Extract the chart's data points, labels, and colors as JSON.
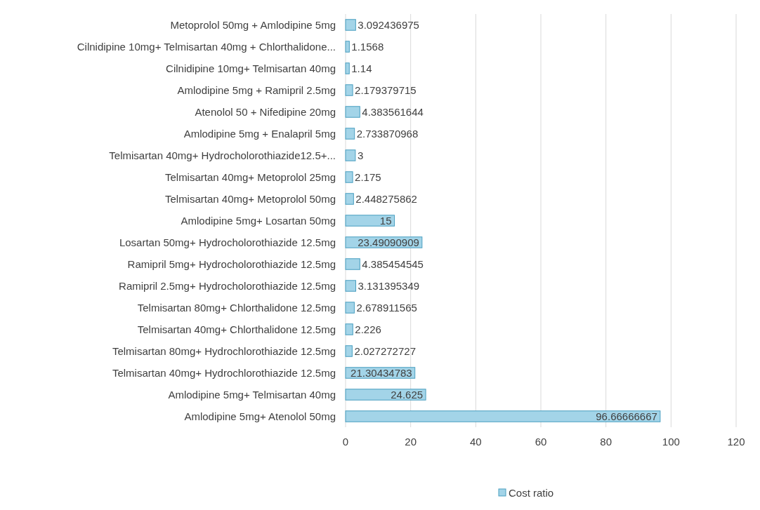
{
  "chart_data": {
    "type": "bar",
    "orientation": "horizontal",
    "categories": [
      "Metoprolol 50mg + Amlodipine 5mg",
      "Cilnidipine 10mg+ Telmisartan 40mg + Chlorthalidone...",
      "Cilnidipine 10mg+ Telmisartan 40mg",
      "Amlodipine 5mg + Ramipril 2.5mg",
      "Atenolol 50 + Nifedipine 20mg",
      "Amlodipine 5mg + Enalapril 5mg",
      "Telmisartan 40mg+ Hydrocholorothiazide12.5+...",
      "Telmisartan 40mg+ Metoprolol 25mg",
      "Telmisartan 40mg+ Metoprolol 50mg",
      "Amlodipine 5mg+ Losartan 50mg",
      "Losartan 50mg+ Hydrocholorothiazide 12.5mg",
      "Ramipril 5mg+ Hydrocholorothiazide 12.5mg",
      "Ramipril 2.5mg+ Hydrocholorothiazide 12.5mg",
      "Telmisartan 80mg+ Chlorthalidone 12.5mg",
      "Telmisartan 40mg+ Chlorthalidone 12.5mg",
      "Telmisartan 80mg+ Hydrochlorothiazide 12.5mg",
      "Telmisartan 40mg+ Hydrochlorothiazide 12.5mg",
      "Amlodipine 5mg+ Telmisartan 40mg",
      "Amlodipine 5mg+ Atenolol 50mg"
    ],
    "series": [
      {
        "name": "Cost ratio",
        "color": "#a3d4e8",
        "values": [
          3.092436975,
          1.1568,
          1.14,
          2.179379715,
          4.383561644,
          2.733870968,
          3,
          2.175,
          2.448275862,
          15,
          23.49090909,
          4.385454545,
          3.131395349,
          2.678911565,
          2.226,
          2.027272727,
          21.30434783,
          24.625,
          96.66666667
        ]
      }
    ],
    "xlim": [
      0,
      120
    ],
    "xticks": [
      0,
      20,
      40,
      60,
      80,
      100,
      120
    ],
    "grid": "x",
    "legend": "bottom",
    "data_labels": true
  }
}
